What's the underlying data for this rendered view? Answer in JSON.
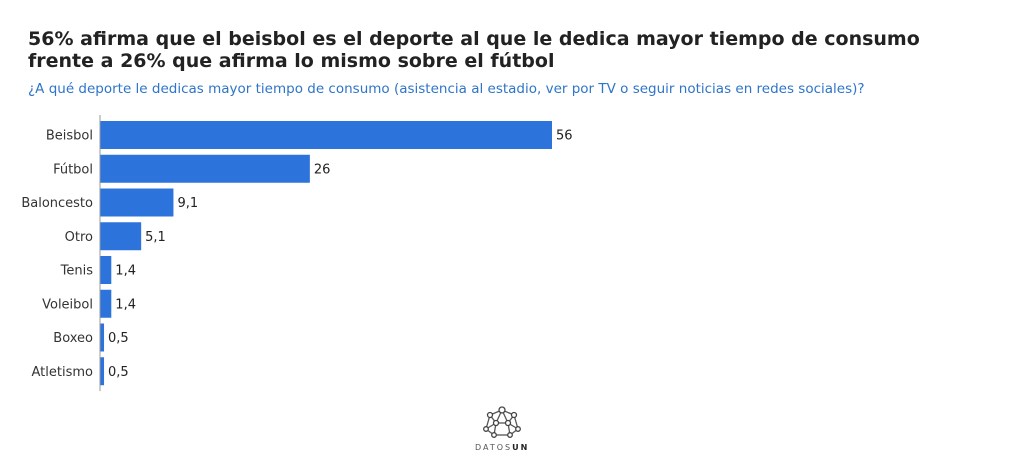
{
  "title": "56% afirma que el beisbol es el deporte al que le dedica mayor tiempo de consumo frente a 26% que afirma lo mismo sobre el fútbol",
  "subtitle": "¿A qué deporte le dedicas mayor tiempo de consumo (asistencia al estadio, ver por TV o seguir noticias en redes sociales)?",
  "brand": {
    "prefix": "DATOS",
    "suffix": "UN"
  },
  "colors": {
    "bar": "#2c74db",
    "axis": "#999999"
  },
  "chart_data": {
    "type": "bar",
    "orientation": "horizontal",
    "categories": [
      "Beisbol",
      "Fútbol",
      "Baloncesto",
      "Otro",
      "Tenis",
      "Voleibol",
      "Boxeo",
      "Atletismo"
    ],
    "values": [
      56,
      26,
      9.1,
      5.1,
      1.4,
      1.4,
      0.5,
      0.5
    ],
    "value_labels": [
      "56",
      "26",
      "9,1",
      "5,1",
      "1,4",
      "1,4",
      "0,5",
      "0,5"
    ],
    "xlim": [
      0,
      56
    ],
    "xlabel": "",
    "ylabel": "",
    "grid": false
  }
}
